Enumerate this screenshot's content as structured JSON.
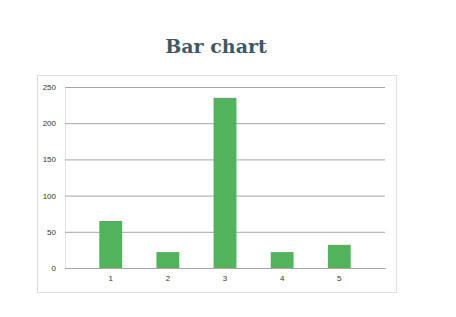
{
  "chart_data": {
    "type": "bar",
    "title": "Bar chart",
    "categories": [
      "1",
      "2",
      "3",
      "4",
      "5"
    ],
    "values": [
      65,
      22,
      235,
      22,
      32
    ],
    "color": "#52b35d",
    "ylim": [
      0,
      250
    ],
    "yticks": [
      0,
      50,
      100,
      150,
      200,
      250
    ],
    "grid": true
  }
}
